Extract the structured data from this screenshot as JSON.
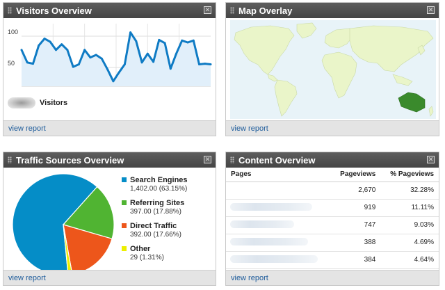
{
  "visitors": {
    "title": "Visitors Overview",
    "legend_label": "Visitors",
    "footer_link": "view report",
    "chart_data": {
      "type": "line",
      "y_ticks": [
        "100",
        "50"
      ],
      "ylim": [
        20,
        120
      ],
      "values": [
        78,
        58,
        56,
        85,
        96,
        91,
        78,
        87,
        78,
        51,
        55,
        78,
        66,
        70,
        64,
        47,
        28,
        42,
        55,
        106,
        92,
        58,
        72,
        59,
        94,
        89,
        48,
        72,
        93,
        90,
        93,
        55,
        56,
        55
      ],
      "series_color": "#0f7bc4",
      "fill_color": "#e1effa",
      "grid": true
    }
  },
  "map": {
    "title": "Map Overlay",
    "footer_link": "view report",
    "ocean_color": "#e8f3f8",
    "land_color": "#eaf5c9",
    "highlight_color": "#3a8a2c"
  },
  "traffic": {
    "title": "Traffic Sources Overview",
    "footer_link": "view report",
    "chart_data": {
      "type": "pie",
      "slices": [
        {
          "label": "Search Engines",
          "value": 1402,
          "detail": "1,402.00 (63.15%)",
          "color": "#058dc7"
        },
        {
          "label": "Referring Sites",
          "value": 397,
          "detail": "397.00 (17.88%)",
          "color": "#50b432"
        },
        {
          "label": "Direct Traffic",
          "value": 392,
          "detail": "392.00 (17.66%)",
          "color": "#ed561b"
        },
        {
          "label": "Other",
          "value": 29,
          "detail": "29 (1.31%)",
          "color": "#edef00"
        }
      ]
    }
  },
  "content": {
    "title": "Content Overview",
    "footer_link": "view report",
    "columns": [
      "Pages",
      "Pageviews",
      "% Pageviews"
    ],
    "rows": [
      {
        "pageviews": "2,670",
        "pct": "32.28%"
      },
      {
        "pageviews": "919",
        "pct": "11.11%"
      },
      {
        "pageviews": "747",
        "pct": "9.03%"
      },
      {
        "pageviews": "388",
        "pct": "4.69%"
      },
      {
        "pageviews": "384",
        "pct": "4.64%"
      }
    ]
  }
}
